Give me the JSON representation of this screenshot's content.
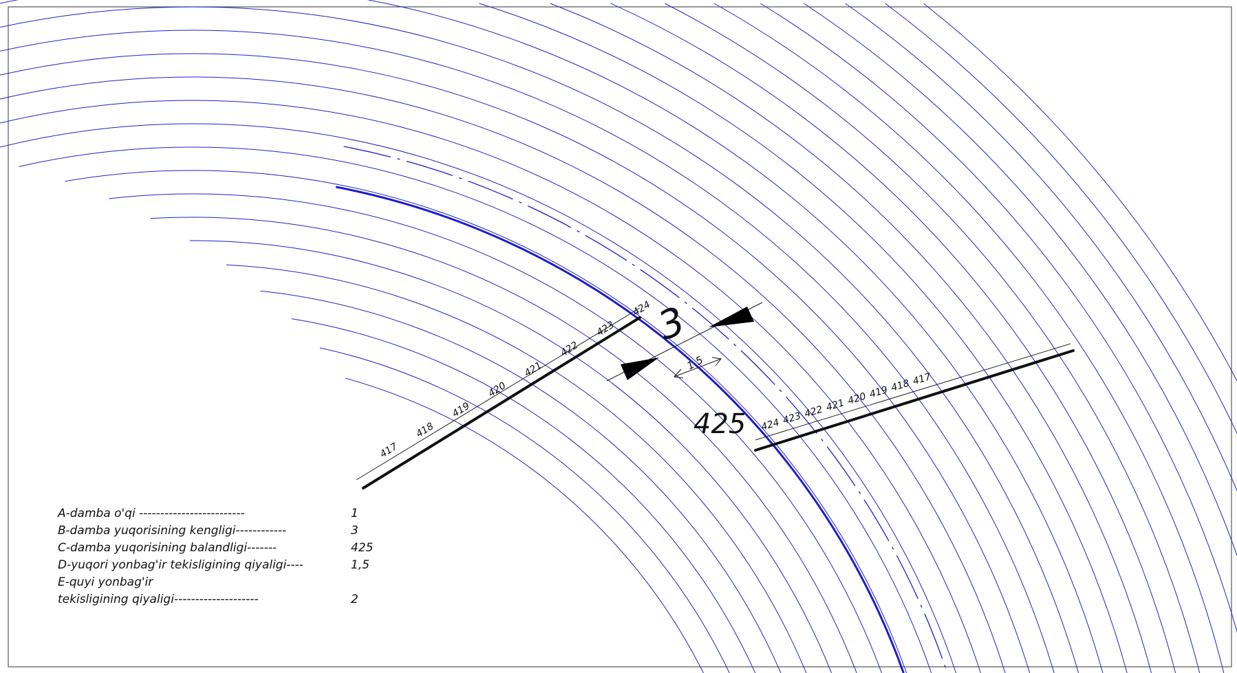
{
  "left_section_labels": [
    "417",
    "418",
    "419",
    "420",
    "421",
    "422",
    "423",
    "424"
  ],
  "right_section_labels": [
    "424",
    "423",
    "422",
    "421",
    "420",
    "419",
    "418",
    "417"
  ],
  "dimensions": {
    "crest_width": "3",
    "slope_ratio": "1.5",
    "crest_elevation": "425"
  },
  "legend": [
    {
      "text": "A-damba o'qi -------------------------",
      "value": "1"
    },
    {
      "text": "B-damba yuqorisining kengligi------------",
      "value": "3"
    },
    {
      "text": "C-damba yuqorisining      balandligi-------",
      "value": "425"
    },
    {
      "text": "D-yuqori yonbag'ir tekisligining qiyaligi----",
      "value": "1,5"
    },
    {
      "text": "E-quyi yonbag'ir",
      "value": ""
    },
    {
      "text": "  tekisligining qiyaligi--------------------",
      "value": "2"
    }
  ],
  "colors": {
    "contour": "#2121c9",
    "crest": "#1a1ad6",
    "section": "#111111"
  }
}
